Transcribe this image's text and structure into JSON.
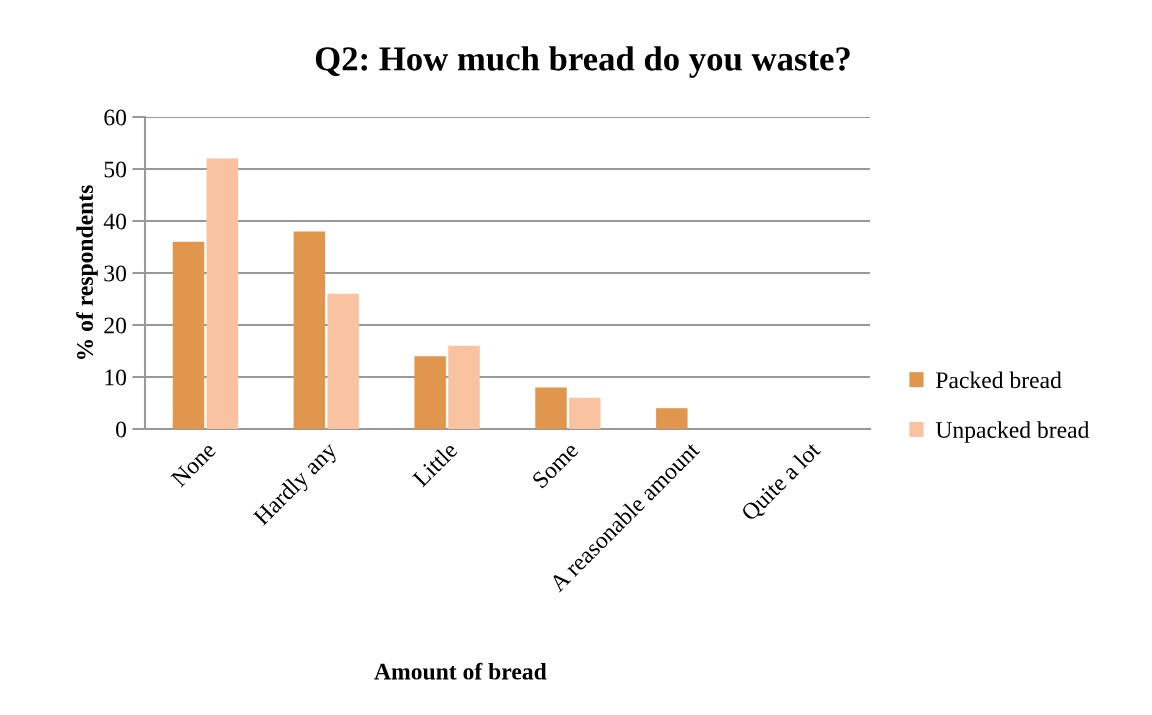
{
  "chart_data": {
    "type": "bar",
    "title": "Q2: How much bread do you waste?",
    "xlabel": "Amount of bread",
    "ylabel": "% of respondents",
    "categories": [
      "None",
      "Hardly any",
      "Little",
      "Some",
      "A reasonable amount",
      "Quite a lot"
    ],
    "series": [
      {
        "name": "Packed bread",
        "color": "#e1964e",
        "values": [
          36,
          38,
          14,
          8,
          4,
          0
        ]
      },
      {
        "name": "Unpacked bread",
        "color": "#f9c2a0",
        "values": [
          52,
          26,
          16,
          6,
          0,
          0
        ]
      }
    ],
    "ylim": [
      0,
      60
    ],
    "yticks": [
      0,
      10,
      20,
      30,
      40,
      50,
      60
    ],
    "grid": "y",
    "legend": "right"
  }
}
